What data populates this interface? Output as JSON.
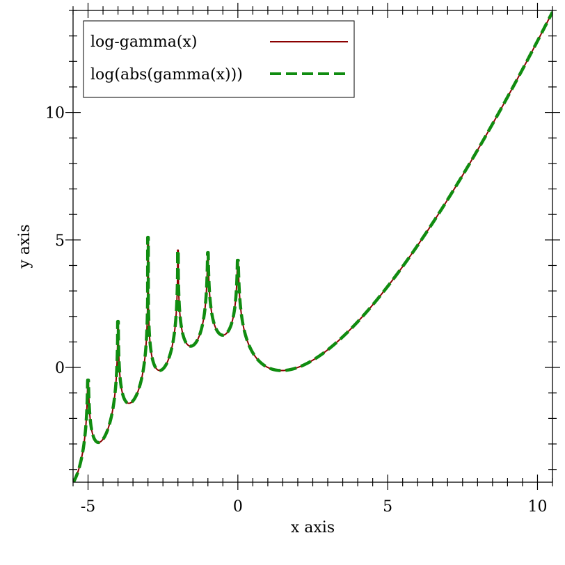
{
  "chart_data": {
    "type": "line",
    "title": "",
    "xlabel": "x axis",
    "ylabel": "y axis",
    "xlim": [
      -5.5,
      10.5
    ],
    "ylim": [
      -4.5,
      14
    ],
    "x_ticks": [
      {
        "value": -5,
        "label": "-5"
      },
      {
        "value": 0,
        "label": "0"
      },
      {
        "value": 5,
        "label": "5"
      },
      {
        "value": 10,
        "label": "10"
      }
    ],
    "y_ticks": [
      {
        "value": 0,
        "label": "0"
      },
      {
        "value": 5,
        "label": "5"
      },
      {
        "value": 10,
        "label": "10"
      }
    ],
    "x_minor_tick_step": 0.5,
    "y_minor_tick_step": 1,
    "grid": false,
    "legend_position": "top-left",
    "series": [
      {
        "name": "log-gamma(x)",
        "color": "#8b0000",
        "style": "solid",
        "function": "log-gamma"
      },
      {
        "name": "log(abs(gamma(x)))",
        "color": "#108c10",
        "style": "dashed",
        "function": "log-abs-gamma"
      }
    ],
    "poles": [
      -5,
      -4,
      -3,
      -2,
      -1,
      0
    ],
    "peak_values": [
      {
        "x": -5,
        "y": -0.5
      },
      {
        "x": -4,
        "y": 1.8
      },
      {
        "x": -3,
        "y": 5.1
      },
      {
        "x": -2,
        "y": 4.6
      },
      {
        "x": -1,
        "y": 4.5
      },
      {
        "x": 0,
        "y": 4.2
      }
    ]
  }
}
